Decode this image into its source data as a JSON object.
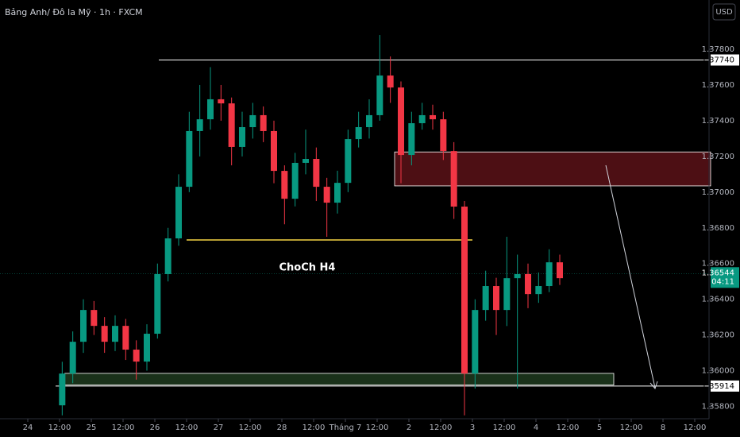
{
  "chart_data": {
    "type": "candlestick",
    "title": "Bảng Anh/ Đô la Mỹ · 1h · FXCM",
    "currency": "USD",
    "annotation": "ChoCh H4",
    "up_color": "#089981",
    "down_color": "#f23645",
    "xlim": [
      -10.5,
      257.4
    ],
    "ylim": [
      1.35731,
      1.38076
    ],
    "xticks": [
      {
        "value": 0,
        "label": "24"
      },
      {
        "value": 12,
        "label": "12:00"
      },
      {
        "value": 24,
        "label": "25"
      },
      {
        "value": 36,
        "label": "12:00"
      },
      {
        "value": 48,
        "label": "26"
      },
      {
        "value": 60,
        "label": "12:00"
      },
      {
        "value": 72,
        "label": "27"
      },
      {
        "value": 84,
        "label": "12:00"
      },
      {
        "value": 96,
        "label": "28"
      },
      {
        "value": 108,
        "label": "12:00"
      },
      {
        "value": 120,
        "label": "Tháng 7"
      },
      {
        "value": 132,
        "label": "12:00"
      },
      {
        "value": 144,
        "label": "2"
      },
      {
        "value": 156,
        "label": "12:00"
      },
      {
        "value": 168,
        "label": "3"
      },
      {
        "value": 180,
        "label": "12:00"
      },
      {
        "value": 192,
        "label": "4"
      },
      {
        "value": 204,
        "label": "12:00"
      },
      {
        "value": 216,
        "label": "5"
      },
      {
        "value": 228,
        "label": "12:00"
      },
      {
        "value": 240,
        "label": "8"
      },
      {
        "value": 252,
        "label": "12:00"
      }
    ],
    "yticks": [
      {
        "value": 1.358,
        "label": "1.35800"
      },
      {
        "value": 1.36,
        "label": "1.36000"
      },
      {
        "value": 1.362,
        "label": "1.36200"
      },
      {
        "value": 1.364,
        "label": "1.36400"
      },
      {
        "value": 1.366,
        "label": "1.36600"
      },
      {
        "value": 1.368,
        "label": "1.36800"
      },
      {
        "value": 1.37,
        "label": "1.37000"
      },
      {
        "value": 1.372,
        "label": "1.37200"
      },
      {
        "value": 1.374,
        "label": "1.37400"
      },
      {
        "value": 1.376,
        "label": "1.37600"
      },
      {
        "value": 1.378,
        "label": "1.37800"
      }
    ],
    "x": [
      13,
      17,
      21,
      25,
      29,
      33,
      37,
      41,
      45,
      49,
      53,
      57,
      61,
      65,
      69,
      73,
      77,
      81,
      85,
      89,
      93,
      97,
      101,
      105,
      109,
      113,
      117,
      121,
      125,
      129,
      133,
      137,
      141,
      145,
      149,
      153,
      157,
      161,
      165,
      169,
      173,
      177,
      181,
      185,
      189,
      193,
      197,
      201
    ],
    "open": [
      1.35806,
      1.35984,
      1.36162,
      1.3634,
      1.36251,
      1.36162,
      1.36251,
      1.36118,
      1.36051,
      1.36207,
      1.36541,
      1.36741,
      1.3703,
      1.37342,
      1.37408,
      1.3752,
      1.37497,
      1.37253,
      1.37364,
      1.37431,
      1.37342,
      1.37119,
      1.36963,
      1.37164,
      1.37186,
      1.3703,
      1.36941,
      1.37052,
      1.37297,
      1.37364,
      1.37431,
      1.37653,
      1.37586,
      1.37208,
      1.37386,
      1.37431,
      1.37408,
      1.3723,
      1.36919,
      1.35984,
      1.3634,
      1.36474,
      1.3634,
      1.36518,
      1.36541,
      1.36429,
      1.36474,
      1.36607
    ],
    "high": [
      1.3605,
      1.3622,
      1.364,
      1.3639,
      1.363,
      1.3631,
      1.3629,
      1.3617,
      1.3626,
      1.366,
      1.368,
      1.371,
      1.3745,
      1.376,
      1.377,
      1.376,
      1.3753,
      1.3745,
      1.375,
      1.3748,
      1.374,
      1.3715,
      1.3722,
      1.3735,
      1.3725,
      1.3708,
      1.3712,
      1.3735,
      1.3745,
      1.3752,
      1.3788,
      1.3776,
      1.3762,
      1.3745,
      1.375,
      1.3749,
      1.3745,
      1.3728,
      1.3695,
      1.364,
      1.3656,
      1.3652,
      1.3675,
      1.3665,
      1.366,
      1.3655,
      1.3668,
      1.3665
    ],
    "low": [
      1.3575,
      1.3593,
      1.361,
      1.362,
      1.361,
      1.3611,
      1.3606,
      1.3595,
      1.36,
      1.3618,
      1.365,
      1.367,
      1.37,
      1.372,
      1.3735,
      1.374,
      1.3715,
      1.372,
      1.373,
      1.3728,
      1.3705,
      1.3682,
      1.3692,
      1.371,
      1.3695,
      1.3675,
      1.3688,
      1.37,
      1.3725,
      1.373,
      1.374,
      1.375,
      1.3705,
      1.3715,
      1.3735,
      1.3735,
      1.3718,
      1.3685,
      1.3575,
      1.359,
      1.3628,
      1.362,
      1.3625,
      1.359,
      1.3635,
      1.3638,
      1.3644,
      1.3648
    ],
    "close": [
      1.35984,
      1.36162,
      1.3634,
      1.36251,
      1.36162,
      1.36251,
      1.36118,
      1.36051,
      1.36207,
      1.36541,
      1.36741,
      1.3703,
      1.37342,
      1.37408,
      1.3752,
      1.37497,
      1.37253,
      1.37364,
      1.37431,
      1.37342,
      1.37119,
      1.36963,
      1.37164,
      1.37186,
      1.3703,
      1.36941,
      1.37052,
      1.37297,
      1.37364,
      1.37431,
      1.37653,
      1.37586,
      1.37208,
      1.37386,
      1.37431,
      1.37408,
      1.3723,
      1.36919,
      1.35984,
      1.3634,
      1.36474,
      1.3634,
      1.36518,
      1.36541,
      1.36429,
      1.36474,
      1.36607,
      1.36518
    ],
    "levels": [
      {
        "value": 1.3774,
        "label": "1.37740",
        "from": 49.5,
        "color": "#ffffff"
      },
      {
        "value": 1.35914,
        "label": "1.35914",
        "from": 10.5,
        "color": "#ffffff"
      }
    ],
    "choch_line": {
      "value": 1.36732,
      "from": 60,
      "to": 168,
      "color": "#f5d442"
    },
    "zones": [
      {
        "top": 1.37225,
        "bottom": 1.37035,
        "from": 138.6,
        "fill": "#5a1218",
        "stroke": "#ffffff"
      },
      {
        "top": 1.35985,
        "bottom": 1.3592,
        "from": 14,
        "to": 221.4,
        "fill": "#1e3a1e",
        "stroke": "#ffffff"
      }
    ],
    "current_price": {
      "value": 1.36544,
      "label": "1.36544",
      "countdown": "04:11",
      "color": "#089981"
    }
  }
}
